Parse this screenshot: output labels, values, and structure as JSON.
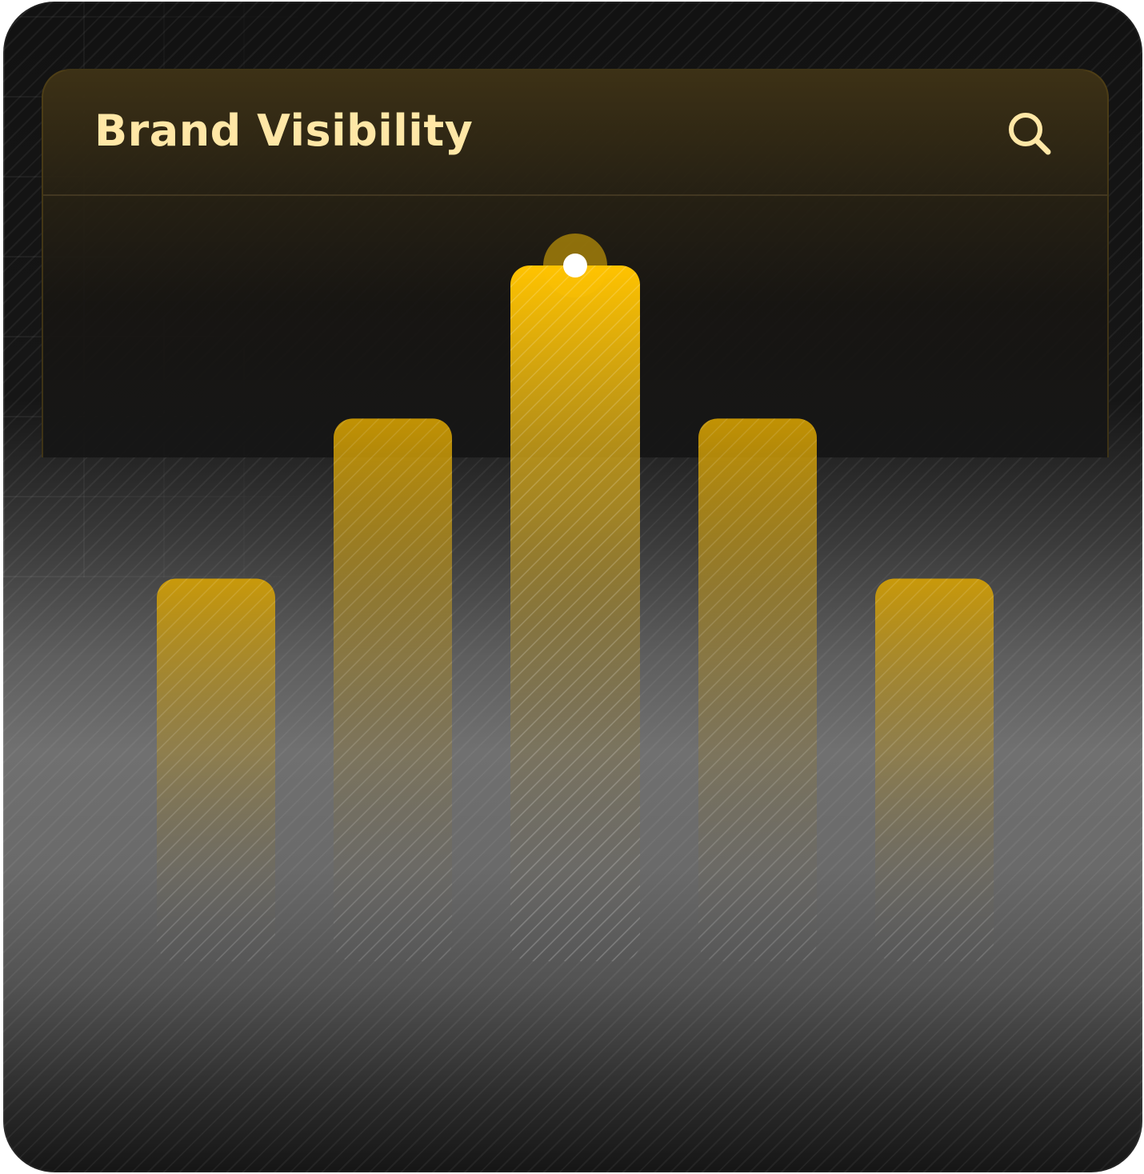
{
  "header": {
    "title": "Brand Visibility",
    "search_icon": "search-icon"
  },
  "colors": {
    "accent": "#FFC300",
    "title_text": "#FFE7A6",
    "marker": "#FFFFFF"
  },
  "chart_data": {
    "type": "bar",
    "title": "Brand Visibility",
    "categories": [
      "",
      "",
      "",
      "",
      ""
    ],
    "values": [
      55,
      78,
      100,
      78,
      55
    ],
    "ylim": [
      0,
      100
    ],
    "highlighted_index": 2,
    "grid": false,
    "legend": "none"
  }
}
